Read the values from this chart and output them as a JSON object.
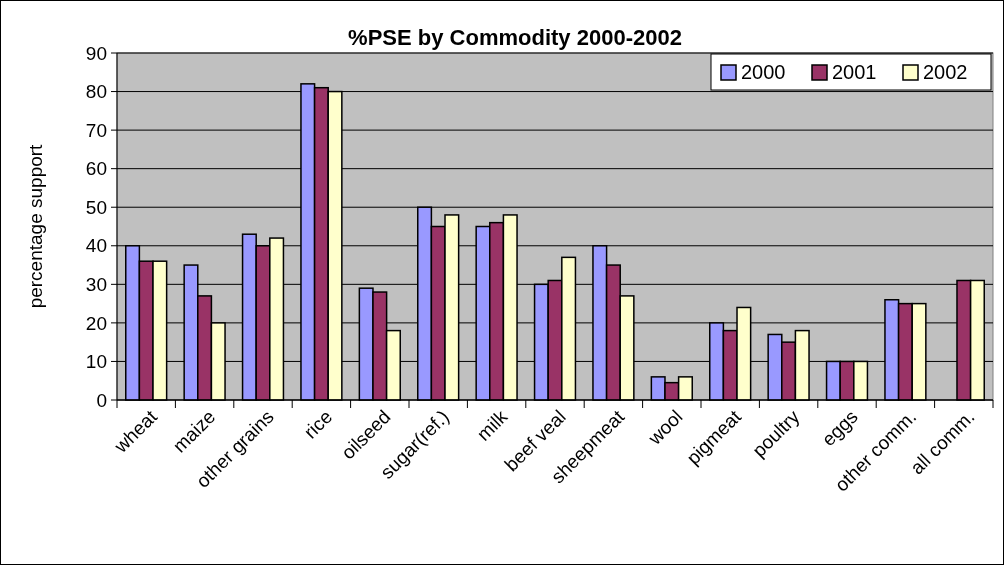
{
  "chart_data": {
    "type": "bar",
    "title": "%PSE by Commodity 2000-2002",
    "ylabel": "percentage support",
    "categories": [
      "wheat",
      "maize",
      "other grains",
      "rice",
      "oilseed",
      "sugar(ref.)",
      "milk",
      "beef veal",
      "sheepmeat",
      "wool",
      "pigmeat",
      "poultry",
      "eggs",
      "other comm.",
      "all comm."
    ],
    "series": [
      {
        "name": "2000",
        "color": "#9999ff",
        "values": [
          40,
          35,
          43,
          82,
          29,
          50,
          45,
          30,
          40,
          6,
          20,
          17,
          10,
          26,
          null
        ]
      },
      {
        "name": "2001",
        "color": "#993366",
        "values": [
          36,
          27,
          40,
          81,
          28,
          45,
          46,
          31,
          35,
          4.5,
          18,
          15,
          10,
          25,
          31
        ]
      },
      {
        "name": "2002",
        "color": "#ffffcc",
        "values": [
          36,
          20,
          42,
          80,
          18,
          48,
          48,
          37,
          27,
          6,
          24,
          18,
          10,
          25,
          31
        ]
      }
    ],
    "ylim": [
      0,
      90
    ],
    "yticks": [
      0,
      10,
      20,
      30,
      40,
      50,
      60,
      70,
      80,
      90
    ],
    "grid": "y",
    "legend": "top right"
  }
}
